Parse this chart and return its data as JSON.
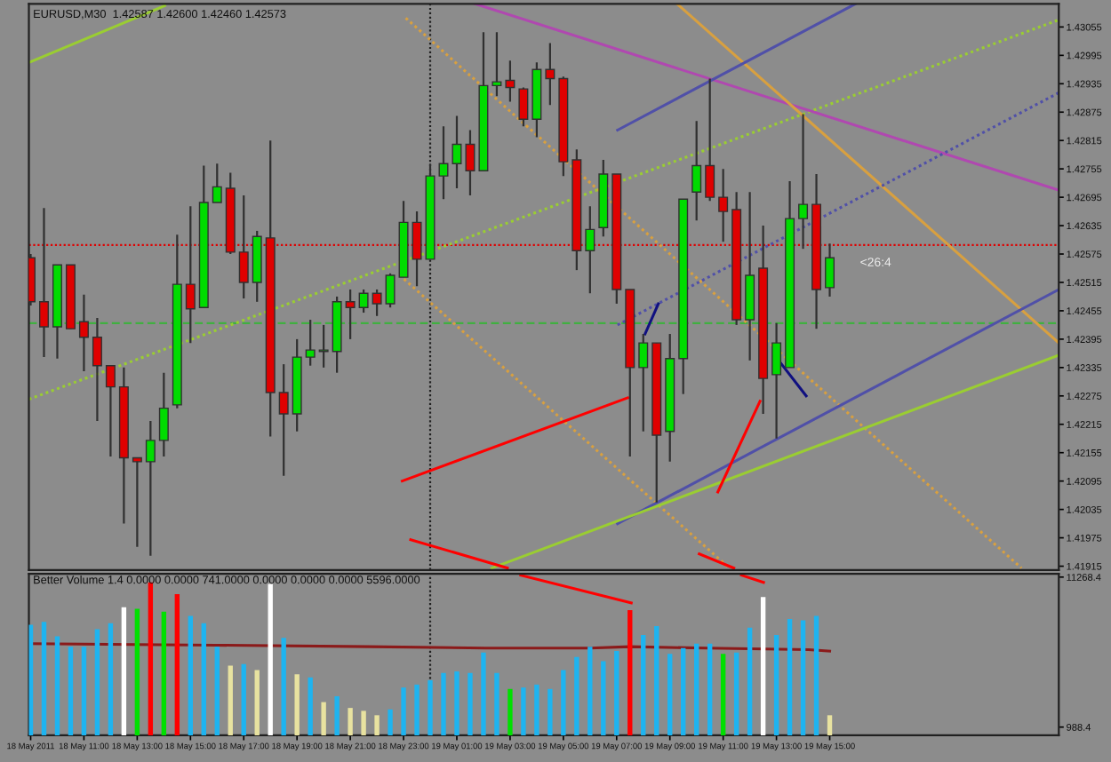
{
  "chart_data": [
    {
      "type": "candlestick",
      "title": "EURUSD,M30  1.42587 1.42600 1.42460 1.42573",
      "x": [
        "2011-05-18T09:00",
        "2011-05-18T09:30",
        "2011-05-18T10:00",
        "2011-05-18T10:30",
        "2011-05-18T11:00",
        "2011-05-18T11:30",
        "2011-05-18T12:00",
        "2011-05-18T12:30",
        "2011-05-18T13:00",
        "2011-05-18T13:30",
        "2011-05-18T14:00",
        "2011-05-18T14:30",
        "2011-05-18T15:00",
        "2011-05-18T15:30",
        "2011-05-18T16:00",
        "2011-05-18T16:30",
        "2011-05-18T17:00",
        "2011-05-18T17:30",
        "2011-05-18T18:00",
        "2011-05-18T18:30",
        "2011-05-18T19:00",
        "2011-05-18T19:30",
        "2011-05-18T20:00",
        "2011-05-18T20:30",
        "2011-05-18T21:00",
        "2011-05-18T21:30",
        "2011-05-18T22:00",
        "2011-05-18T22:30",
        "2011-05-18T23:00",
        "2011-05-18T23:30",
        "2011-05-19T00:00",
        "2011-05-19T00:30",
        "2011-05-19T01:00",
        "2011-05-19T01:30",
        "2011-05-19T02:00",
        "2011-05-19T02:30",
        "2011-05-19T03:00",
        "2011-05-19T03:30",
        "2011-05-19T04:00",
        "2011-05-19T04:30",
        "2011-05-19T05:00",
        "2011-05-19T05:30",
        "2011-05-19T06:00",
        "2011-05-19T06:30",
        "2011-05-19T07:00",
        "2011-05-19T07:30",
        "2011-05-19T08:00",
        "2011-05-19T08:30",
        "2011-05-19T09:00",
        "2011-05-19T09:30",
        "2011-05-19T10:00",
        "2011-05-19T10:30",
        "2011-05-19T11:00",
        "2011-05-19T11:30",
        "2011-05-19T12:00",
        "2011-05-19T12:30",
        "2011-05-19T13:00",
        "2011-05-19T13:30",
        "2011-05-19T14:00",
        "2011-05-19T14:30",
        "2011-05-19T15:00"
      ],
      "ohlc": [
        [
          1.42567,
          1.42575,
          1.42466,
          1.42474
        ],
        [
          1.42474,
          1.42672,
          1.42357,
          1.42421
        ],
        [
          1.42421,
          1.42552,
          1.42354,
          1.42552
        ],
        [
          1.42552,
          1.42552,
          1.42417,
          1.42417
        ],
        [
          1.42432,
          1.42489,
          1.42327,
          1.42399
        ],
        [
          1.42399,
          1.4244,
          1.42222,
          1.42339
        ],
        [
          1.42339,
          1.42339,
          1.42147,
          1.42294
        ],
        [
          1.42294,
          1.42335,
          1.42005,
          1.42144
        ],
        [
          1.42144,
          1.42144,
          1.41956,
          1.42136
        ],
        [
          1.42136,
          1.42222,
          1.41937,
          1.42181
        ],
        [
          1.42181,
          1.42324,
          1.42147,
          1.42249
        ],
        [
          1.42256,
          1.42616,
          1.42249,
          1.42511
        ],
        [
          1.42511,
          1.42676,
          1.42387,
          1.42459
        ],
        [
          1.42462,
          1.42762,
          1.42462,
          1.42684
        ],
        [
          1.42684,
          1.42766,
          1.42684,
          1.42717
        ],
        [
          1.42714,
          1.42747,
          1.42575,
          1.42579
        ],
        [
          1.42579,
          1.42699,
          1.42481,
          1.42515
        ],
        [
          1.42515,
          1.42624,
          1.42474,
          1.42612
        ],
        [
          1.42609,
          1.42815,
          1.42189,
          1.42282
        ],
        [
          1.42282,
          1.42342,
          1.42106,
          1.42237
        ],
        [
          1.42237,
          1.42395,
          1.422,
          1.42357
        ],
        [
          1.42357,
          1.42436,
          1.42339,
          1.42372
        ],
        [
          1.42369,
          1.42425,
          1.42335,
          1.42372
        ],
        [
          1.42369,
          1.42485,
          1.42324,
          1.42474
        ],
        [
          1.42474,
          1.425,
          1.42395,
          1.42462
        ],
        [
          1.42462,
          1.425,
          1.42451,
          1.42492
        ],
        [
          1.42492,
          1.425,
          1.42444,
          1.4247
        ],
        [
          1.4247,
          1.42534,
          1.42462,
          1.4253
        ],
        [
          1.42526,
          1.42687,
          1.42526,
          1.42642
        ],
        [
          1.42642,
          1.42665,
          1.42507,
          1.42564
        ],
        [
          1.42564,
          1.42766,
          1.42564,
          1.4274
        ],
        [
          1.4274,
          1.42845,
          1.42691,
          1.42766
        ],
        [
          1.42766,
          1.42867,
          1.42714,
          1.42807
        ],
        [
          1.42807,
          1.42837,
          1.42699,
          1.42751
        ],
        [
          1.42751,
          1.43044,
          1.42751,
          1.42931
        ],
        [
          1.42931,
          1.43044,
          1.42909,
          1.42939
        ],
        [
          1.42942,
          1.42984,
          1.42897,
          1.42927
        ],
        [
          1.42924,
          1.42927,
          1.42845,
          1.4286
        ],
        [
          1.4286,
          1.4298,
          1.42822,
          1.42965
        ],
        [
          1.42965,
          1.43021,
          1.4289,
          1.42946
        ],
        [
          1.42946,
          1.4295,
          1.4274,
          1.4277
        ],
        [
          1.42774,
          1.42796,
          1.42541,
          1.42582
        ],
        [
          1.42582,
          1.42676,
          1.42492,
          1.42627
        ],
        [
          1.42631,
          1.42774,
          1.42612,
          1.42744
        ],
        [
          1.42744,
          1.42744,
          1.4247,
          1.425
        ],
        [
          1.425,
          1.425,
          1.42147,
          1.42335
        ],
        [
          1.42335,
          1.42406,
          1.422,
          1.42387
        ],
        [
          1.42387,
          1.42387,
          1.4205,
          1.42192
        ],
        [
          1.422,
          1.42406,
          1.42136,
          1.42354
        ],
        [
          1.42354,
          1.42691,
          1.42279,
          1.42691
        ],
        [
          1.42706,
          1.42856,
          1.42646,
          1.42762
        ],
        [
          1.42762,
          1.42946,
          1.42687,
          1.42695
        ],
        [
          1.42695,
          1.42755,
          1.42601,
          1.42665
        ],
        [
          1.42669,
          1.42706,
          1.42425,
          1.42436
        ],
        [
          1.42436,
          1.42706,
          1.4235,
          1.4253
        ],
        [
          1.42545,
          1.42635,
          1.42237,
          1.42312
        ],
        [
          1.4232,
          1.42429,
          1.42185,
          1.42387
        ],
        [
          1.42335,
          1.42729,
          1.42335,
          1.4265
        ],
        [
          1.4265,
          1.42871,
          1.42586,
          1.4268
        ],
        [
          1.4268,
          1.42744,
          1.42417,
          1.425
        ],
        [
          1.42504,
          1.42597,
          1.42485,
          1.42567
        ]
      ],
      "colors": [
        "#e00000",
        "#e00000",
        "#00dc00",
        "#e00000",
        "#e00000",
        "#e00000",
        "#e00000",
        "#e00000",
        "#e00000",
        "#00dc00",
        "#00dc00",
        "#00dc00",
        "#e00000",
        "#00dc00",
        "#00dc00",
        "#e00000",
        "#e00000",
        "#00dc00",
        "#e00000",
        "#e00000",
        "#00dc00",
        "#00dc00",
        "#00dc00",
        "#00dc00",
        "#e00000",
        "#00dc00",
        "#e00000",
        "#00dc00",
        "#00dc00",
        "#e00000",
        "#00dc00",
        "#00dc00",
        "#00dc00",
        "#e00000",
        "#00dc00",
        "#00dc00",
        "#e00000",
        "#e00000",
        "#00dc00",
        "#e00000",
        "#e00000",
        "#e00000",
        "#00dc00",
        "#00dc00",
        "#e00000",
        "#e00000",
        "#00dc00",
        "#e00000",
        "#00dc00",
        "#00dc00",
        "#00dc00",
        "#e00000",
        "#e00000",
        "#e00000",
        "#00dc00",
        "#e00000",
        "#00dc00",
        "#00dc00",
        "#00dc00",
        "#e00000",
        "#00dc00"
      ],
      "series": [
        {
          "type": "line",
          "color": "#9acd32",
          "x": [
            "2011-05-18T08:56",
            "2011-05-18T14:02"
          ],
          "values": [
            1.4298,
            1.431
          ]
        },
        {
          "type": "line",
          "color": "#9acd32",
          "line_style": "dotted",
          "x": [
            "2011-05-18T08:56",
            "2011-05-19T23:36"
          ],
          "values": [
            1.42268,
            1.4307
          ]
        },
        {
          "type": "line",
          "color": "#b048b0",
          "x": [
            "2011-05-19T01:41",
            "2011-05-19T23:36"
          ],
          "values": [
            1.43104,
            1.4271
          ]
        },
        {
          "type": "line",
          "color": "#d8a040",
          "line_style": "dotted",
          "x": [
            "2011-05-18T23:05",
            "2011-05-19T22:12"
          ],
          "values": [
            1.43074,
            1.41911
          ]
        },
        {
          "type": "line",
          "color": "#d8a040",
          "x": [
            "2011-05-19T09:16",
            "2011-05-19T23:36"
          ],
          "values": [
            1.43104,
            1.42387
          ]
        },
        {
          "type": "line",
          "color": "#d8a040",
          "line_style": "dotted",
          "x": [
            "2011-05-18T23:01",
            "2011-05-19T11:14"
          ],
          "values": [
            1.42522,
            1.41911
          ]
        },
        {
          "type": "line",
          "color": "#5050a8",
          "x": [
            "2011-05-19T07:02",
            "2011-05-19T15:58"
          ],
          "values": [
            1.42837,
            1.43104
          ]
        },
        {
          "type": "line",
          "color": "#5050a8",
          "line_style": "dotted",
          "x": [
            "2011-05-19T07:02",
            "2011-05-19T23:36"
          ],
          "values": [
            1.42425,
            1.42916
          ]
        },
        {
          "type": "line",
          "color": "#5050a8",
          "x": [
            "2011-05-19T07:02",
            "2011-05-19T23:36"
          ],
          "values": [
            1.42005,
            1.425
          ]
        },
        {
          "type": "line",
          "color": "#101080",
          "x": [
            "2011-05-19T08:04",
            "2011-05-19T08:34"
          ],
          "values": [
            1.42406,
            1.4247
          ]
        },
        {
          "type": "line",
          "color": "#101080",
          "x": [
            "2011-05-19T13:05",
            "2011-05-19T14:07"
          ],
          "values": [
            1.4235,
            1.42275
          ]
        },
        {
          "type": "line",
          "color": "#9acd32",
          "x": [
            "2011-05-19T02:19",
            "2011-05-19T23:36"
          ],
          "values": [
            1.41911,
            1.42361
          ]
        },
        {
          "type": "line",
          "color": "#ff0000",
          "x": [
            "2011-05-18T22:57",
            "2011-05-19T07:25"
          ],
          "values": [
            1.42095,
            1.42271
          ]
        },
        {
          "type": "line",
          "color": "#ff0000",
          "x": [
            "2011-05-18T23:16",
            "2011-05-19T02:54"
          ],
          "values": [
            1.41971,
            1.41911
          ]
        },
        {
          "type": "line",
          "color": "#ff0000",
          "x": [
            "2011-05-19T10:48",
            "2011-05-19T12:23"
          ],
          "values": [
            1.42072,
            1.42264
          ]
        },
        {
          "type": "line",
          "color": "#ff0000",
          "x": [
            "2011-05-19T10:06",
            "2011-05-19T11:24"
          ],
          "values": [
            1.41941,
            1.41911
          ]
        }
      ],
      "ref_lines": [
        {
          "axis": "y",
          "value": 1.42594,
          "color": "#e00000",
          "line_style": "dotted"
        },
        {
          "axis": "y",
          "value": 1.42429,
          "color": "#40b040",
          "line_style": "dashed"
        },
        {
          "axis": "x",
          "value": "2011-05-19T00:00",
          "color": "#202020",
          "line_style": "dotted"
        }
      ],
      "annotations": [
        "<26:4"
      ],
      "xlim": [
        "2011-05-18T08:56",
        "2011-05-19T23:36"
      ],
      "ylim": [
        1.41907,
        1.43104
      ],
      "yticks": [
        1.41915,
        1.41975,
        1.42035,
        1.42095,
        1.42155,
        1.42215,
        1.42275,
        1.42335,
        1.42395,
        1.42455,
        1.42515,
        1.42575,
        1.42635,
        1.42695,
        1.42755,
        1.42815,
        1.42875,
        1.42935,
        1.42995,
        1.43055
      ],
      "tick_labels": "y"
    },
    {
      "type": "bar",
      "title": "Better Volume 1.4 0.0000 0.0000 741.0000 0.0000 0.0000 0.0000 5596.0000",
      "x": [
        "2011-05-18T09:00",
        "2011-05-18T09:30",
        "2011-05-18T10:00",
        "2011-05-18T10:30",
        "2011-05-18T11:00",
        "2011-05-18T11:30",
        "2011-05-18T12:00",
        "2011-05-18T12:30",
        "2011-05-18T13:00",
        "2011-05-18T13:30",
        "2011-05-18T14:00",
        "2011-05-18T14:30",
        "2011-05-18T15:00",
        "2011-05-18T15:30",
        "2011-05-18T16:00",
        "2011-05-18T16:30",
        "2011-05-18T17:00",
        "2011-05-18T17:30",
        "2011-05-18T18:00",
        "2011-05-18T18:30",
        "2011-05-18T19:00",
        "2011-05-18T19:30",
        "2011-05-18T20:00",
        "2011-05-18T20:30",
        "2011-05-18T21:00",
        "2011-05-18T21:30",
        "2011-05-18T22:00",
        "2011-05-18T22:30",
        "2011-05-18T23:00",
        "2011-05-18T23:30",
        "2011-05-19T00:00",
        "2011-05-19T00:30",
        "2011-05-19T01:00",
        "2011-05-19T01:30",
        "2011-05-19T02:00",
        "2011-05-19T02:30",
        "2011-05-19T03:00",
        "2011-05-19T03:30",
        "2011-05-19T04:00",
        "2011-05-19T04:30",
        "2011-05-19T05:00",
        "2011-05-19T05:30",
        "2011-05-19T06:00",
        "2011-05-19T06:30",
        "2011-05-19T07:00",
        "2011-05-19T07:30",
        "2011-05-19T08:00",
        "2011-05-19T08:30",
        "2011-05-19T09:00",
        "2011-05-19T09:30",
        "2011-05-19T10:00",
        "2011-05-19T10:30",
        "2011-05-19T11:00",
        "2011-05-19T11:30",
        "2011-05-19T12:00",
        "2011-05-19T12:30",
        "2011-05-19T13:00",
        "2011-05-19T13:30",
        "2011-05-19T14:00",
        "2011-05-19T14:30",
        "2011-05-19T15:00"
      ],
      "values": [
        8000,
        8200,
        7200,
        6500,
        6500,
        7700,
        8100,
        9200,
        9100,
        10900,
        8900,
        10100,
        8600,
        8100,
        6500,
        5200,
        5300,
        4900,
        10800,
        7100,
        4600,
        4400,
        2700,
        3100,
        2300,
        2100,
        1800,
        2200,
        3700,
        3900,
        4200,
        4700,
        4800,
        4700,
        6100,
        4700,
        3600,
        3700,
        3900,
        3600,
        4900,
        5800,
        6500,
        5500,
        6200,
        9000,
        7300,
        7900,
        6000,
        6400,
        6700,
        6700,
        6000,
        6100,
        7800,
        9900,
        7300,
        8400,
        8300,
        8600,
        1800
      ],
      "colors": [
        "#1eb4f0",
        "#1eb4f0",
        "#1eb4f0",
        "#1eb4f0",
        "#1eb4f0",
        "#1eb4f0",
        "#1eb4f0",
        "#ffffff",
        "#00e000",
        "#ff0000",
        "#00e000",
        "#ff0000",
        "#1eb4f0",
        "#1eb4f0",
        "#1eb4f0",
        "#e8e2a0",
        "#1eb4f0",
        "#e8e2a0",
        "#ffffff",
        "#1eb4f0",
        "#e8e2a0",
        "#1eb4f0",
        "#e8e2a0",
        "#1eb4f0",
        "#e8e2a0",
        "#e8e2a0",
        "#e8e2a0",
        "#1eb4f0",
        "#1eb4f0",
        "#1eb4f0",
        "#1eb4f0",
        "#1eb4f0",
        "#1eb4f0",
        "#1eb4f0",
        "#1eb4f0",
        "#1eb4f0",
        "#00e000",
        "#1eb4f0",
        "#1eb4f0",
        "#1eb4f0",
        "#1eb4f0",
        "#1eb4f0",
        "#1eb4f0",
        "#1eb4f0",
        "#1eb4f0",
        "#ff0000",
        "#1eb4f0",
        "#1eb4f0",
        "#1eb4f0",
        "#1eb4f0",
        "#1eb4f0",
        "#1eb4f0",
        "#00e000",
        "#1eb4f0",
        "#1eb4f0",
        "#ffffff",
        "#1eb4f0",
        "#1eb4f0",
        "#1eb4f0",
        "#1eb4f0",
        "#e8e2a0"
      ],
      "series": [
        {
          "type": "line",
          "color": "#8b1a1a",
          "x": [
            "2011-05-18T09:00",
            "2011-05-18T15:56",
            "2011-05-18T21:42",
            "2011-05-19T02:06",
            "2011-05-19T06:00",
            "2011-05-19T07:30",
            "2011-05-19T10:24",
            "2011-05-19T14:12",
            "2011-05-19T15:00"
          ],
          "values": [
            6700,
            6600,
            6500,
            6400,
            6400,
            6500,
            6400,
            6300,
            6200
          ]
        },
        {
          "type": "line",
          "color": "#ff0000",
          "x": [
            "2011-05-19T03:24",
            "2011-05-19T07:33"
          ],
          "values": [
            11400,
            9500
          ]
        },
        {
          "type": "line",
          "color": "#ff0000",
          "x": [
            "2011-05-19T11:41",
            "2011-05-19T12:31"
          ],
          "values": [
            11400,
            10900
          ]
        }
      ],
      "ref_lines": [
        {
          "axis": "x",
          "value": "2011-05-19T00:00",
          "color": "#202020",
          "line_style": "dotted"
        }
      ],
      "xlim": [
        "2011-05-18T08:56",
        "2011-05-19T23:36"
      ],
      "ylim": [
        423,
        11494
      ],
      "yticks": [
        988.4,
        11268.4
      ],
      "xticks": [
        {
          "value": "2011-05-18T09:00",
          "label": "18 May 2011"
        },
        {
          "value": "2011-05-18T11:00",
          "label": "18 May 11:00"
        },
        {
          "value": "2011-05-18T13:00",
          "label": "18 May 13:00"
        },
        {
          "value": "2011-05-18T15:00",
          "label": "18 May 15:00"
        },
        {
          "value": "2011-05-18T17:00",
          "label": "18 May 17:00"
        },
        {
          "value": "2011-05-18T19:00",
          "label": "18 May 19:00"
        },
        {
          "value": "2011-05-18T21:00",
          "label": "18 May 21:00"
        },
        {
          "value": "2011-05-18T23:00",
          "label": "18 May 23:00"
        },
        {
          "value": "2011-05-19T01:00",
          "label": "19 May 01:00"
        },
        {
          "value": "2011-05-19T03:00",
          "label": "19 May 03:00"
        },
        {
          "value": "2011-05-19T05:00",
          "label": "19 May 05:00"
        },
        {
          "value": "2011-05-19T07:00",
          "label": "19 May 07:00"
        },
        {
          "value": "2011-05-19T09:00",
          "label": "19 May 09:00"
        },
        {
          "value": "2011-05-19T11:00",
          "label": "19 May 11:00"
        },
        {
          "value": "2011-05-19T13:00",
          "label": "19 May 13:00"
        },
        {
          "value": "2011-05-19T15:00",
          "label": "19 May 15:00"
        }
      ]
    }
  ]
}
